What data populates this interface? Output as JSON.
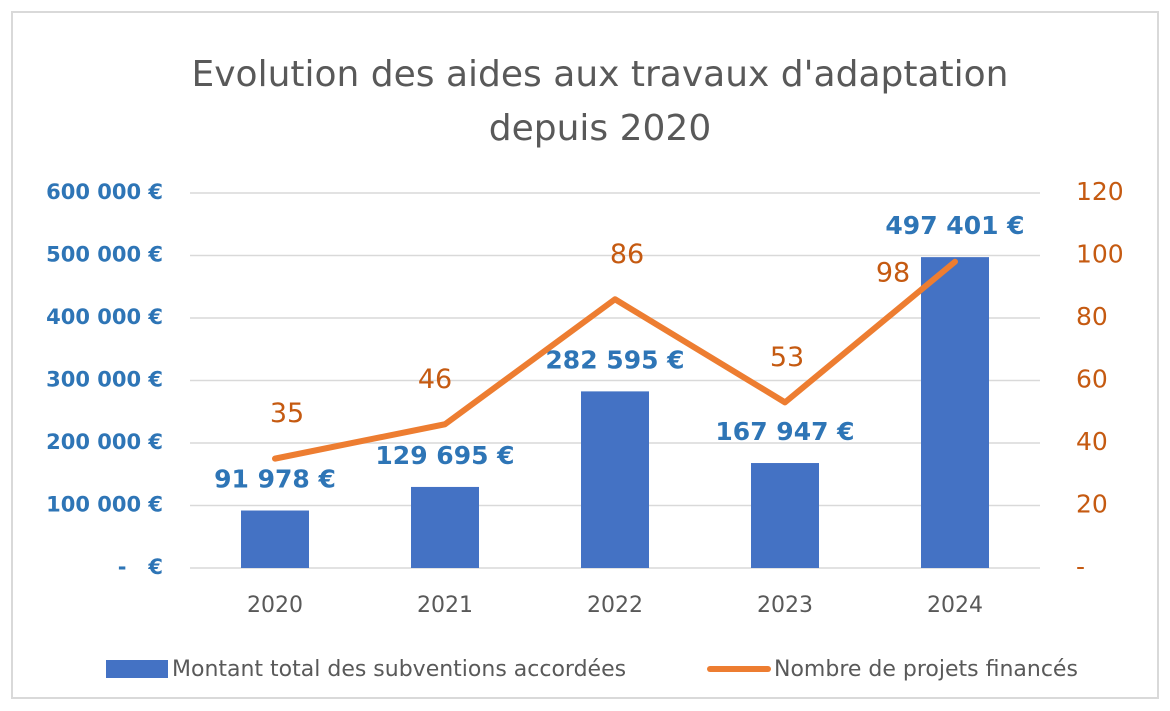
{
  "chart_data": {
    "type": "bar-line",
    "title": "Evolution des aides aux travaux d'adaptation",
    "subtitle": "depuis 2020",
    "categories": [
      "2020",
      "2021",
      "2022",
      "2023",
      "2024"
    ],
    "series": [
      {
        "name": "Montant total des subventions accordées",
        "type": "bar",
        "color": "#4472c4",
        "label_color": "#2e75b6",
        "values": [
          91978,
          129695,
          282595,
          167947,
          497401
        ],
        "value_labels": [
          "91 978 €",
          "129 695 €",
          "282 595 €",
          "167 947 €",
          "497 401 €"
        ]
      },
      {
        "name": "Nombre de projets financés",
        "type": "line",
        "axis": "y2",
        "color": "#ed7d31",
        "label_color": "#c55a11",
        "values": [
          35,
          46,
          86,
          53,
          98
        ]
      }
    ],
    "ylim": [
      0,
      600000
    ],
    "yticks": [
      {
        "value": 0,
        "label": "-   €"
      },
      {
        "value": 100000,
        "label": "100 000 €"
      },
      {
        "value": 200000,
        "label": "200 000 €"
      },
      {
        "value": 300000,
        "label": "300 000 €"
      },
      {
        "value": 400000,
        "label": "400 000 €"
      },
      {
        "value": 500000,
        "label": "500 000 €"
      },
      {
        "value": 600000,
        "label": "600 000 €"
      }
    ],
    "y2lim": [
      0,
      120
    ],
    "y2ticks": [
      {
        "value": 0,
        "label": "-"
      },
      20,
      40,
      60,
      80,
      100,
      120
    ],
    "grid": true,
    "legend": "bottom"
  }
}
